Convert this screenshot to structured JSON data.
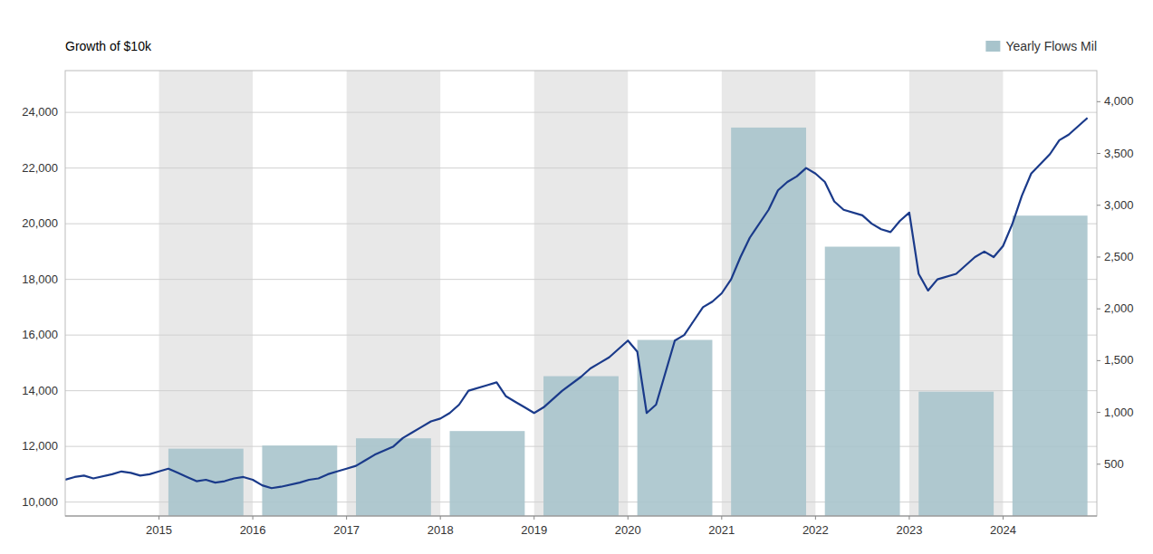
{
  "chart_data": {
    "type": "combo",
    "ylabel": "Growth of $10k",
    "xlim": [
      2014,
      2025
    ],
    "xticks": [
      2015,
      2016,
      2017,
      2018,
      2019,
      2020,
      2021,
      2022,
      2023,
      2024
    ],
    "ylim": [
      9500,
      25500
    ],
    "yticks": [
      {
        "value": 10000,
        "label": "10,000"
      },
      {
        "value": 12000,
        "label": "12,000"
      },
      {
        "value": 14000,
        "label": "14,000"
      },
      {
        "value": 16000,
        "label": "16,000"
      },
      {
        "value": 18000,
        "label": "18,000"
      },
      {
        "value": 20000,
        "label": "20,000"
      },
      {
        "value": 22000,
        "label": "22,000"
      },
      {
        "value": 24000,
        "label": "24,000"
      }
    ],
    "y2lim": [
      0,
      4300
    ],
    "y2ticks": [
      500,
      {
        "value": 1000,
        "label": "1,000"
      },
      {
        "value": 1500,
        "label": "1,500"
      },
      {
        "value": 2000,
        "label": "2,000"
      },
      {
        "value": 2500,
        "label": "2,500"
      },
      {
        "value": 3000,
        "label": "3,000"
      },
      {
        "value": 3500,
        "label": "3,500"
      },
      {
        "value": 4000,
        "label": "4,000"
      }
    ],
    "grid": true,
    "legend": "upper right",
    "bands": {
      "starts": [
        2015,
        2017,
        2019,
        2021,
        2023
      ],
      "ends": [
        2016,
        2018,
        2020,
        2022,
        2024
      ],
      "color": "#e8e8e8"
    },
    "series": [
      {
        "name": "Yearly Flows Mil",
        "type": "bar",
        "axis": "y2",
        "color": "#a8c4cc",
        "x": [
          2014,
          2015,
          2016,
          2017,
          2018,
          2019,
          2020,
          2021,
          2022,
          2023,
          2024
        ],
        "values": [
          0,
          650,
          680,
          750,
          820,
          1350,
          1700,
          3750,
          2600,
          1200,
          2900
        ]
      },
      {
        "type": "line",
        "color": "#1a3a8a",
        "x": [
          2014.0,
          2014.1,
          2014.2,
          2014.3,
          2014.5,
          2014.6,
          2014.7,
          2014.8,
          2014.9,
          2015.0,
          2015.1,
          2015.2,
          2015.3,
          2015.4,
          2015.5,
          2015.6,
          2015.7,
          2015.8,
          2015.9,
          2016.0,
          2016.1,
          2016.2,
          2016.3,
          2016.5,
          2016.6,
          2016.7,
          2016.8,
          2016.9,
          2017.0,
          2017.1,
          2017.2,
          2017.3,
          2017.5,
          2017.6,
          2017.7,
          2017.8,
          2017.9,
          2018.0,
          2018.1,
          2018.2,
          2018.3,
          2018.5,
          2018.6,
          2018.7,
          2018.8,
          2018.9,
          2019.0,
          2019.1,
          2019.2,
          2019.3,
          2019.5,
          2019.6,
          2019.7,
          2019.8,
          2019.9,
          2020.0,
          2020.1,
          2020.2,
          2020.3,
          2020.5,
          2020.6,
          2020.7,
          2020.8,
          2020.9,
          2021.0,
          2021.1,
          2021.2,
          2021.3,
          2021.5,
          2021.6,
          2021.7,
          2021.8,
          2021.9,
          2022.0,
          2022.1,
          2022.2,
          2022.3,
          2022.5,
          2022.6,
          2022.7,
          2022.8,
          2022.9,
          2023.0,
          2023.1,
          2023.2,
          2023.3,
          2023.5,
          2023.6,
          2023.7,
          2023.8,
          2023.9,
          2024.0,
          2024.1,
          2024.2,
          2024.3,
          2024.5,
          2024.6,
          2024.7,
          2024.8,
          2024.9
        ],
        "values": [
          10800,
          10900,
          10950,
          10850,
          11000,
          11100,
          11050,
          10950,
          11000,
          11100,
          11200,
          11050,
          10900,
          10750,
          10800,
          10700,
          10750,
          10850,
          10900,
          10800,
          10600,
          10500,
          10550,
          10700,
          10800,
          10850,
          11000,
          11100,
          11200,
          11300,
          11500,
          11700,
          12000,
          12300,
          12500,
          12700,
          12900,
          13000,
          13200,
          13500,
          14000,
          14200,
          14300,
          13800,
          13600,
          13400,
          13200,
          13400,
          13700,
          14000,
          14500,
          14800,
          15000,
          15200,
          15500,
          15800,
          15400,
          13200,
          13500,
          15800,
          16000,
          16500,
          17000,
          17200,
          17500,
          18000,
          18800,
          19500,
          20500,
          21200,
          21500,
          21700,
          22000,
          21800,
          21500,
          20800,
          20500,
          20300,
          20000,
          19800,
          19700,
          20100,
          20400,
          18200,
          17600,
          18000,
          18200,
          18500,
          18800,
          19000,
          18800,
          19200,
          20000,
          21000,
          21800,
          22500,
          23000,
          23200,
          23500,
          23800
        ]
      }
    ]
  }
}
